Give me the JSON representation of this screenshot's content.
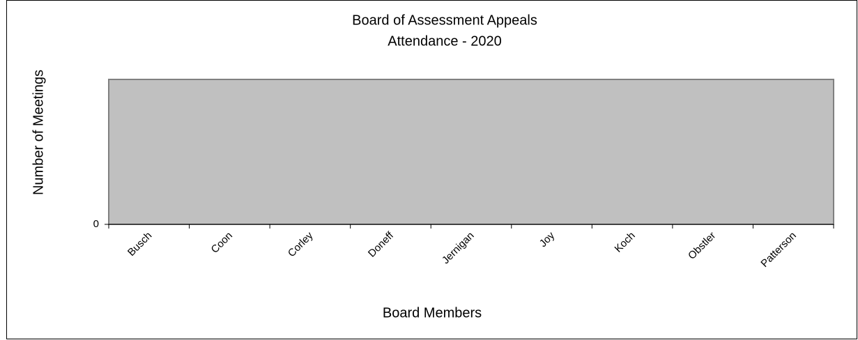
{
  "chart_data": {
    "type": "bar",
    "title": "Board of Assessment Appeals",
    "subtitle": "Attendance - 2020",
    "x_label": "Board Members",
    "y_label": "Number of Meetings",
    "categories": [
      "Busch",
      "Coon",
      "Corley",
      "Doneff",
      "Jernigan",
      "Joy",
      "Koch",
      "Obstler",
      "Patterson"
    ],
    "values": [
      0,
      0,
      0,
      0,
      0,
      0,
      0,
      0,
      0
    ],
    "color": "#0000ff",
    "plot_background": "#c0c0c0",
    "ylim": [
      0,
      1
    ],
    "yticks": [
      0
    ],
    "grid": false
  }
}
